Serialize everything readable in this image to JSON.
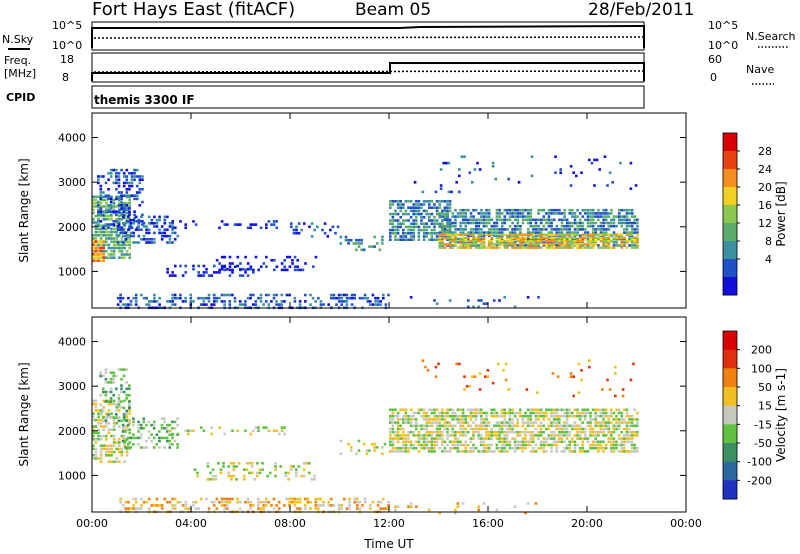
{
  "header": {
    "station": "Fort Hays East (fitACF)",
    "beam": "Beam 05",
    "date": "28/Feb/2011"
  },
  "top_panels": {
    "nsky": {
      "label": "N.Sky",
      "ticks": [
        "10^5",
        "10^0"
      ],
      "right_ticks": [
        "10^5",
        "10^0"
      ],
      "right_label": "N.Search"
    },
    "freq": {
      "label_line1": "Freq.",
      "label_line2": "[MHz]",
      "ticks": [
        "18",
        "8"
      ],
      "right_ticks": [
        "60",
        "0"
      ],
      "right_label": "Nave"
    },
    "cpid": {
      "label": "CPID",
      "text": "themis 3300 IF"
    }
  },
  "chart_data": [
    {
      "type": "heatmap",
      "name": "power",
      "ylabel": "Slant Range [km]",
      "ylim": [
        180,
        4550
      ],
      "yticks": [
        1000,
        2000,
        3000,
        4000
      ],
      "xlim": [
        0,
        24
      ],
      "xticks": [
        "00:00",
        "04:00",
        "08:00",
        "12:00",
        "16:00",
        "20:00",
        "00:00"
      ],
      "colorbar_label": "Power [dB]",
      "colorbar_ticks": [
        "4",
        "8",
        "12",
        "16",
        "20",
        "24",
        "28"
      ],
      "colors": [
        "#1010d8",
        "#2050c8",
        "#3a8fa0",
        "#5aaa6a",
        "#8cc850",
        "#f0d020",
        "#f59020",
        "#e84010",
        "#d80000"
      ],
      "regions": [
        {
          "t0": 0.0,
          "t1": 1.5,
          "r0": 1300,
          "r1": 2700,
          "density": 0.75,
          "level": 3
        },
        {
          "t0": 0.2,
          "t1": 2.0,
          "r0": 2000,
          "r1": 3300,
          "density": 0.45,
          "level": 1
        },
        {
          "t0": 0.0,
          "t1": 0.5,
          "r0": 1200,
          "r1": 1700,
          "density": 0.9,
          "level": 6
        },
        {
          "t0": 1.0,
          "t1": 3.5,
          "r0": 1650,
          "r1": 2250,
          "density": 0.45,
          "level": 1
        },
        {
          "t0": 3.0,
          "t1": 7.5,
          "r0": 1950,
          "r1": 2150,
          "density": 0.25,
          "level": 0
        },
        {
          "t0": 3.0,
          "t1": 6.5,
          "r0": 900,
          "r1": 1150,
          "density": 0.3,
          "level": 0
        },
        {
          "t0": 5.0,
          "t1": 9.0,
          "r0": 1000,
          "r1": 1350,
          "density": 0.3,
          "level": 0
        },
        {
          "t0": 8.0,
          "t1": 10.0,
          "r0": 1800,
          "r1": 2100,
          "density": 0.2,
          "level": 1
        },
        {
          "t0": 10.0,
          "t1": 11.8,
          "r0": 1500,
          "r1": 1800,
          "density": 0.25,
          "level": 2
        },
        {
          "t0": 1.0,
          "t1": 12.0,
          "r0": 200,
          "r1": 500,
          "density": 0.45,
          "level": 1
        },
        {
          "t0": 12.0,
          "t1": 14.5,
          "r0": 1700,
          "r1": 2600,
          "density": 0.7,
          "level": 2
        },
        {
          "t0": 14.0,
          "t1": 22.0,
          "r0": 1550,
          "r1": 2400,
          "density": 0.7,
          "level": 2
        },
        {
          "t0": 14.0,
          "t1": 22.0,
          "r0": 1500,
          "r1": 1850,
          "density": 0.8,
          "level": 5
        },
        {
          "t0": 13.0,
          "t1": 22.0,
          "r0": 2800,
          "r1": 3600,
          "density": 0.04,
          "level": 1
        },
        {
          "t0": 12.0,
          "t1": 18.0,
          "r0": 180,
          "r1": 450,
          "density": 0.08,
          "level": 1
        }
      ]
    },
    {
      "type": "heatmap",
      "name": "velocity",
      "ylabel": "Slant Range [km]",
      "ylim": [
        180,
        4550
      ],
      "yticks": [
        1000,
        2000,
        3000,
        4000
      ],
      "xlim": [
        0,
        24
      ],
      "xticks": [
        "00:00",
        "04:00",
        "08:00",
        "12:00",
        "16:00",
        "20:00",
        "00:00"
      ],
      "xlabel": "Time UT",
      "colorbar_label": "Velocity [m s-1]",
      "colorbar_ticks": [
        "200",
        "100",
        "50",
        "15",
        "-15",
        "-50",
        "-100",
        "-200"
      ],
      "colors": [
        "#2030c0",
        "#2a6aa0",
        "#3a9060",
        "#60c040",
        "#c8c8c0",
        "#f0c020",
        "#f08010",
        "#e03010",
        "#d80000"
      ],
      "regions": [
        {
          "t0": 0.0,
          "t1": 1.5,
          "r0": 1300,
          "r1": 2700,
          "density": 0.55,
          "level": 4
        },
        {
          "t0": 0.3,
          "t1": 1.5,
          "r0": 2200,
          "r1": 3400,
          "density": 0.35,
          "level": 3
        },
        {
          "t0": 1.2,
          "t1": 3.5,
          "r0": 1650,
          "r1": 2300,
          "density": 0.45,
          "level": 3
        },
        {
          "t0": 3.0,
          "t1": 8.0,
          "r0": 1900,
          "r1": 2100,
          "density": 0.2,
          "level": 4
        },
        {
          "t0": 4.0,
          "t1": 9.0,
          "r0": 900,
          "r1": 1300,
          "density": 0.25,
          "level": 4
        },
        {
          "t0": 10.0,
          "t1": 11.8,
          "r0": 1500,
          "r1": 1800,
          "density": 0.2,
          "level": 4
        },
        {
          "t0": 1.0,
          "t1": 12.0,
          "r0": 200,
          "r1": 500,
          "density": 0.45,
          "level": 5
        },
        {
          "t0": 12.0,
          "t1": 22.0,
          "r0": 1500,
          "r1": 2500,
          "density": 0.7,
          "level": 4
        },
        {
          "t0": 13.0,
          "t1": 22.0,
          "r0": 2800,
          "r1": 3600,
          "density": 0.04,
          "level": 6
        },
        {
          "t0": 12.0,
          "t1": 18.0,
          "r0": 180,
          "r1": 400,
          "density": 0.08,
          "level": 5
        }
      ]
    }
  ]
}
